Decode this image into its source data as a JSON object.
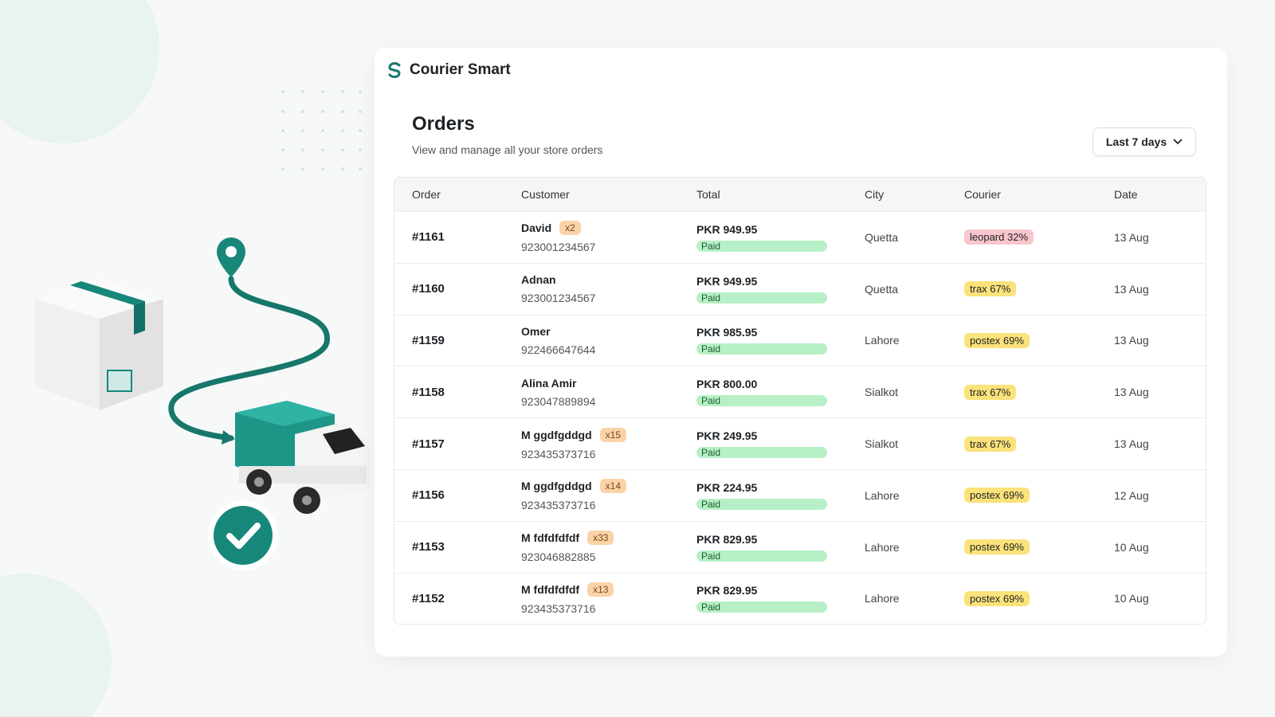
{
  "header": {
    "app_name": "Courier Smart"
  },
  "orders_page": {
    "title": "Orders",
    "subtitle": "View and manage all your store orders",
    "date_filter": "Last 7 days"
  },
  "table": {
    "columns": [
      "Order",
      "Customer",
      "Total",
      "City",
      "Courier",
      "Date"
    ],
    "rows": [
      {
        "order": "#1161",
        "customer": "David",
        "count_badge": "x2",
        "phone": "923001234567",
        "total": "PKR 949.95",
        "status": "Paid",
        "city": "Quetta",
        "courier": "leopard 32%",
        "courier_color": "#f8c6cc",
        "date": "13 Aug"
      },
      {
        "order": "#1160",
        "customer": "Adnan",
        "phone": "923001234567",
        "total": "PKR 949.95",
        "status": "Paid",
        "city": "Quetta",
        "courier": "trax 67%",
        "courier_color": "#fbe27a",
        "date": "13 Aug"
      },
      {
        "order": "#1159",
        "customer": "Omer",
        "phone": "922466647644",
        "total": "PKR 985.95",
        "status": "Paid",
        "city": "Lahore",
        "courier": "postex 69%",
        "courier_color": "#fbe27a",
        "date": "13 Aug"
      },
      {
        "order": "#1158",
        "customer": "Alina Amir",
        "phone": "923047889894",
        "total": "PKR 800.00",
        "status": "Paid",
        "city": "Sialkot",
        "courier": "trax 67%",
        "courier_color": "#fbe27a",
        "date": "13 Aug"
      },
      {
        "order": "#1157",
        "customer": "M ggdfgddgd",
        "count_badge": "x15",
        "phone": "923435373716",
        "total": "PKR 249.95",
        "status": "Paid",
        "city": "Sialkot",
        "courier": "trax 67%",
        "courier_color": "#fbe27a",
        "date": "13 Aug"
      },
      {
        "order": "#1156",
        "customer": "M ggdfgddgd",
        "count_badge": "x14",
        "phone": "923435373716",
        "total": "PKR 224.95",
        "status": "Paid",
        "city": "Lahore",
        "courier": "postex 69%",
        "courier_color": "#fbe27a",
        "date": "12 Aug"
      },
      {
        "order": "#1153",
        "customer": "M fdfdfdfdf",
        "count_badge": "x33",
        "phone": "923046882885",
        "total": "PKR 829.95",
        "status": "Paid",
        "city": "Lahore",
        "courier": "postex 69%",
        "courier_color": "#fbe27a",
        "date": "10 Aug"
      },
      {
        "order": "#1152",
        "customer": "M fdfdfdfdf",
        "count_badge": "x13",
        "phone": "923435373716",
        "total": "PKR 829.95",
        "status": "Paid",
        "city": "Lahore",
        "courier": "postex 69%",
        "courier_color": "#fbe27a",
        "date": "10 Aug"
      }
    ]
  }
}
